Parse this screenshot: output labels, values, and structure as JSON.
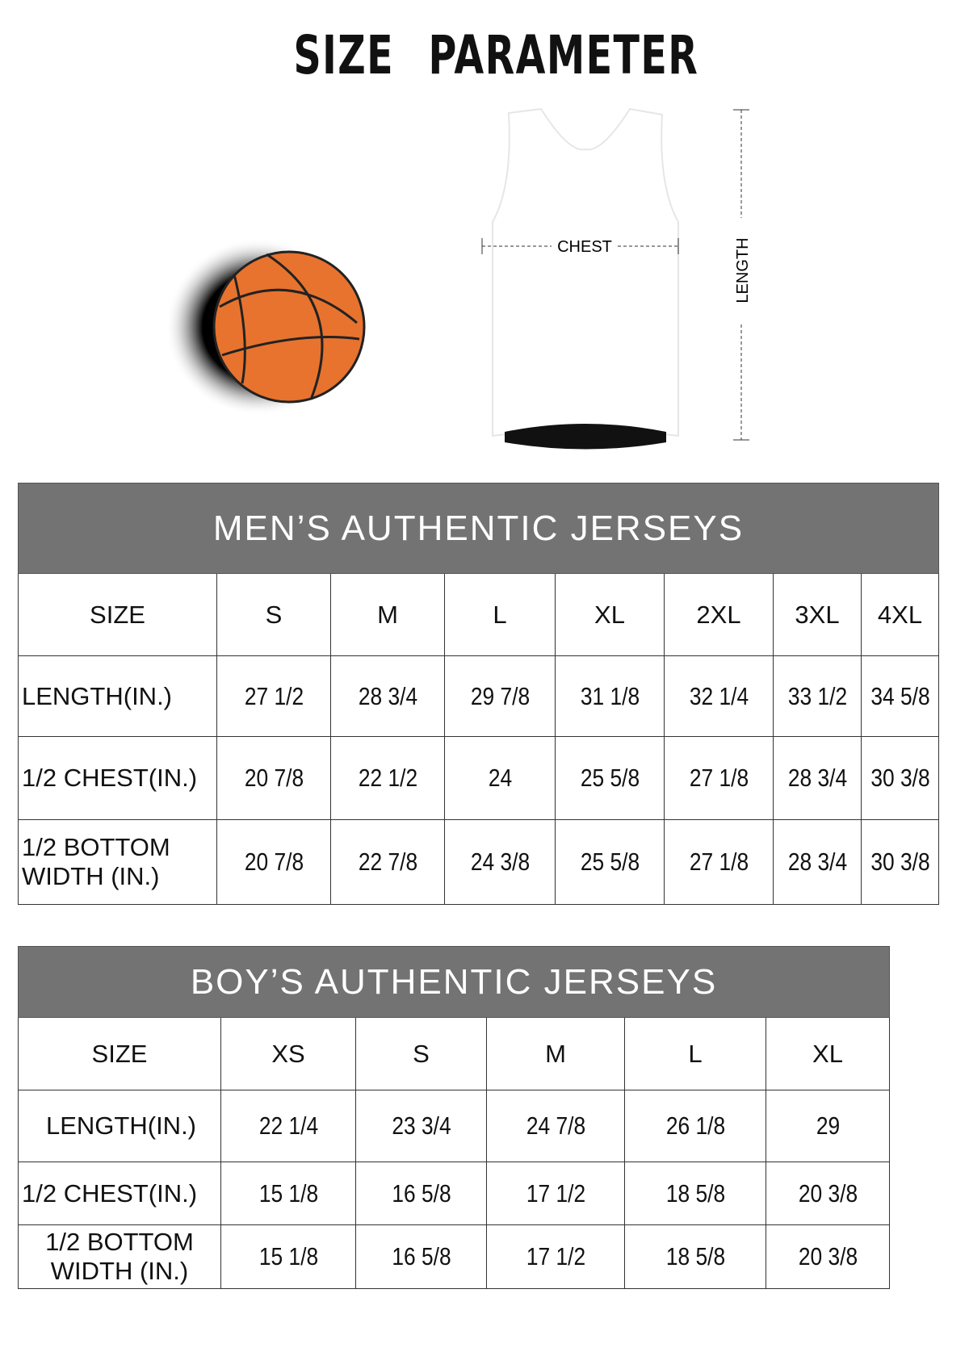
{
  "title": "SIZE PARAMETER",
  "diagram": {
    "chest_label": "CHEST",
    "length_label": "LENGTH"
  },
  "men": {
    "heading": "MEN’S AUTHENTIC JERSEYS",
    "size_label": "SIZE",
    "sizes": [
      "S",
      "M",
      "L",
      "XL",
      "2XL",
      "3XL",
      "4XL"
    ],
    "rows": [
      {
        "label": "LENGTH(IN.)",
        "values": [
          "27 1/2",
          "28 3/4",
          "29 7/8",
          "31 1/8",
          "32 1/4",
          "33 1/2",
          "34 5/8"
        ]
      },
      {
        "label": "1/2 CHEST(IN.)",
        "values": [
          "20 7/8",
          "22 1/2",
          "24",
          "25 5/8",
          "27 1/8",
          "28 3/4",
          "30 3/8"
        ]
      },
      {
        "label": "1/2 BOTTOM WIDTH (IN.)",
        "values": [
          "20 7/8",
          "22 7/8",
          "24 3/8",
          "25 5/8",
          "27 1/8",
          "28 3/4",
          "30 3/8"
        ]
      }
    ]
  },
  "boy": {
    "heading": "BOY’S AUTHENTIC JERSEYS",
    "size_label": "SIZE",
    "sizes": [
      "XS",
      "S",
      "M",
      "L",
      "XL"
    ],
    "rows": [
      {
        "label": "LENGTH(IN.)",
        "values": [
          "22 1/4",
          "23 3/4",
          "24 7/8",
          "26 1/8",
          "29"
        ]
      },
      {
        "label": "1/2 CHEST(IN.)",
        "values": [
          "15 1/8",
          "16 5/8",
          "17 1/2",
          "18 5/8",
          "20 3/8"
        ]
      },
      {
        "label": "1/2 BOTTOM WIDTH (IN.)",
        "values": [
          "15 1/8",
          "16 5/8",
          "17 1/2",
          "18 5/8",
          "20 3/8"
        ]
      }
    ]
  },
  "colors": {
    "header_bg": "#737373",
    "ball": "#e8732e"
  }
}
